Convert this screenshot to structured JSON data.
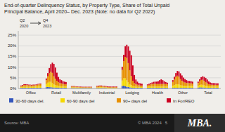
{
  "chart_data": {
    "type": "bar",
    "stacked": true,
    "grid": true,
    "legend": "bottom",
    "title": "End-of-quarter Delinquency Status, by Property Type, Share of Total Unpaid",
    "subtitle": "Principal Balance, April 2020– Dec. 2023 (Note: no data for Q2 2022)",
    "annotations": [
      "Q2",
      "2020",
      "Q4",
      "2023",
      "Source: MBA",
      "© MBA 2024   5",
      "MBA."
    ],
    "categories": [
      "Office",
      "Retail",
      "Multifamily",
      "Industrial",
      "Lodging",
      "Health",
      "Other",
      "Total"
    ],
    "ylim": [
      0,
      0.27
    ],
    "yticks": [
      {
        "value": 0,
        "label": "0%"
      },
      {
        "value": 0.05,
        "label": "5%"
      },
      {
        "value": 0.1,
        "label": "10%"
      },
      {
        "value": 0.15,
        "label": "15%"
      },
      {
        "value": 0.2,
        "label": "20%"
      },
      {
        "value": 0.25,
        "label": "25%"
      }
    ],
    "series": [
      {
        "name": "30-60 days del.",
        "color": "#3355bb",
        "values": [
          [
            0.003,
            0.003,
            0.003,
            0.003,
            0.003,
            0.003,
            0.003,
            0.003,
            0.003,
            0.003,
            0.003,
            0.003,
            0.003,
            0.003
          ],
          [
            0.006,
            0.007,
            0.006,
            0.006,
            0.005,
            0.004,
            0.004,
            0.004,
            0.004,
            0.003,
            0.003,
            0.003,
            0.003,
            0.003
          ],
          [
            0.002,
            0.002,
            0.002,
            0.002,
            0.002,
            0.002,
            0.002,
            0.002,
            0.002,
            0.002,
            0.002,
            0.002,
            0.002,
            0.002
          ],
          [
            0.002,
            0.002,
            0.002,
            0.002,
            0.002,
            0.002,
            0.002,
            0.001,
            0.001,
            0.001,
            0.001,
            0.001,
            0.001,
            0.001
          ],
          [
            0.012,
            0.013,
            0.01,
            0.008,
            0.007,
            0.005,
            0.004,
            0.003,
            0.003,
            0.003,
            0.003,
            0.003,
            0.003,
            0.003
          ],
          [
            0.003,
            0.003,
            0.003,
            0.003,
            0.003,
            0.003,
            0.003,
            0.003,
            0.003,
            0.003,
            0.003,
            0.003,
            0.003,
            0.003
          ],
          [
            0.003,
            0.003,
            0.003,
            0.003,
            0.003,
            0.003,
            0.003,
            0.003,
            0.003,
            0.003,
            0.003,
            0.003,
            0.003,
            0.003
          ],
          [
            0.004,
            0.005,
            0.005,
            0.004,
            0.004,
            0.003,
            0.003,
            0.003,
            0.003,
            0.003,
            0.003,
            0.003,
            0.003,
            0.003
          ]
        ]
      },
      {
        "name": "60-90 days del",
        "color": "#f5d800",
        "values": [
          [
            0.004,
            0.004,
            0.005,
            0.005,
            0.005,
            0.005,
            0.005,
            0.005,
            0.006,
            0.006,
            0.006,
            0.007,
            0.007,
            0.007
          ],
          [
            0.015,
            0.02,
            0.025,
            0.025,
            0.02,
            0.015,
            0.012,
            0.01,
            0.008,
            0.007,
            0.007,
            0.006,
            0.006,
            0.006
          ],
          [
            0.003,
            0.003,
            0.003,
            0.003,
            0.003,
            0.002,
            0.002,
            0.002,
            0.002,
            0.002,
            0.002,
            0.002,
            0.002,
            0.002
          ],
          [
            0.003,
            0.003,
            0.004,
            0.004,
            0.003,
            0.003,
            0.003,
            0.003,
            0.002,
            0.002,
            0.002,
            0.002,
            0.002,
            0.002
          ],
          [
            0.025,
            0.035,
            0.038,
            0.03,
            0.022,
            0.015,
            0.012,
            0.008,
            0.006,
            0.005,
            0.005,
            0.004,
            0.004,
            0.004
          ],
          [
            0.005,
            0.006,
            0.006,
            0.006,
            0.006,
            0.006,
            0.006,
            0.006,
            0.006,
            0.006,
            0.006,
            0.006,
            0.006,
            0.006
          ],
          [
            0.01,
            0.013,
            0.016,
            0.017,
            0.016,
            0.013,
            0.011,
            0.01,
            0.009,
            0.009,
            0.009,
            0.009,
            0.009,
            0.009
          ],
          [
            0.009,
            0.011,
            0.013,
            0.013,
            0.011,
            0.009,
            0.008,
            0.007,
            0.006,
            0.006,
            0.006,
            0.006,
            0.006,
            0.006
          ]
        ]
      },
      {
        "name": "90+ days del",
        "color": "#e89000",
        "values": [
          [
            0.004,
            0.006,
            0.008,
            0.008,
            0.008,
            0.007,
            0.007,
            0.006,
            0.006,
            0.006,
            0.007,
            0.008,
            0.01,
            0.01
          ],
          [
            0.018,
            0.03,
            0.04,
            0.048,
            0.048,
            0.038,
            0.03,
            0.022,
            0.017,
            0.015,
            0.014,
            0.012,
            0.011,
            0.01
          ],
          [
            0.004,
            0.004,
            0.004,
            0.003,
            0.003,
            0.003,
            0.003,
            0.002,
            0.002,
            0.002,
            0.002,
            0.002,
            0.002,
            0.002
          ],
          [
            0.004,
            0.005,
            0.005,
            0.005,
            0.004,
            0.004,
            0.003,
            0.003,
            0.003,
            0.003,
            0.003,
            0.003,
            0.003,
            0.003
          ],
          [
            0.05,
            0.08,
            0.1,
            0.105,
            0.09,
            0.065,
            0.042,
            0.025,
            0.016,
            0.012,
            0.01,
            0.008,
            0.007,
            0.007
          ],
          [
            0.007,
            0.008,
            0.01,
            0.012,
            0.013,
            0.013,
            0.012,
            0.012,
            0.012,
            0.012,
            0.012,
            0.012,
            0.012,
            0.011
          ],
          [
            0.018,
            0.026,
            0.035,
            0.04,
            0.036,
            0.028,
            0.022,
            0.018,
            0.016,
            0.014,
            0.013,
            0.013,
            0.012,
            0.011
          ],
          [
            0.013,
            0.018,
            0.022,
            0.024,
            0.021,
            0.017,
            0.013,
            0.01,
            0.009,
            0.008,
            0.008,
            0.008,
            0.008,
            0.008
          ]
        ]
      },
      {
        "name": "In For/REO",
        "color": "#cc0020",
        "values": [
          [
            0.003,
            0.003,
            0.004,
            0.004,
            0.004,
            0.003,
            0.003,
            0.003,
            0.003,
            0.003,
            0.003,
            0.003,
            0.003,
            0.003
          ],
          [
            0.008,
            0.015,
            0.025,
            0.035,
            0.048,
            0.058,
            0.052,
            0.038,
            0.025,
            0.018,
            0.015,
            0.013,
            0.012,
            0.011
          ],
          [
            0.002,
            0.002,
            0.002,
            0.002,
            0.002,
            0.002,
            0.002,
            0.002,
            0.002,
            0.002,
            0.002,
            0.002,
            0.002,
            0.002
          ],
          [
            0.003,
            0.003,
            0.003,
            0.003,
            0.003,
            0.003,
            0.003,
            0.003,
            0.003,
            0.003,
            0.003,
            0.003,
            0.003,
            0.003
          ],
          [
            0.015,
            0.03,
            0.05,
            0.062,
            0.078,
            0.092,
            0.098,
            0.072,
            0.038,
            0.022,
            0.014,
            0.011,
            0.01,
            0.008
          ],
          [
            0.004,
            0.005,
            0.006,
            0.007,
            0.009,
            0.01,
            0.011,
            0.013,
            0.018,
            0.022,
            0.018,
            0.013,
            0.009,
            0.007
          ],
          [
            0.008,
            0.013,
            0.018,
            0.022,
            0.025,
            0.027,
            0.025,
            0.02,
            0.016,
            0.013,
            0.011,
            0.01,
            0.01,
            0.009
          ],
          [
            0.006,
            0.009,
            0.013,
            0.016,
            0.018,
            0.02,
            0.018,
            0.013,
            0.01,
            0.009,
            0.008,
            0.008,
            0.007,
            0.007
          ]
        ]
      }
    ]
  }
}
